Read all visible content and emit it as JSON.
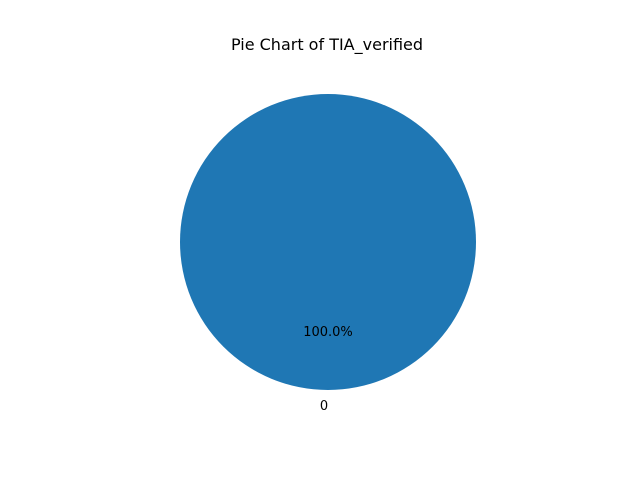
{
  "chart_data": {
    "type": "pie",
    "title": "Pie Chart of TIA_verified",
    "slices": [
      {
        "label": "0",
        "value": 100.0,
        "percent_label": "100.0%",
        "color": "#1f77b4"
      }
    ],
    "legend": "none"
  }
}
